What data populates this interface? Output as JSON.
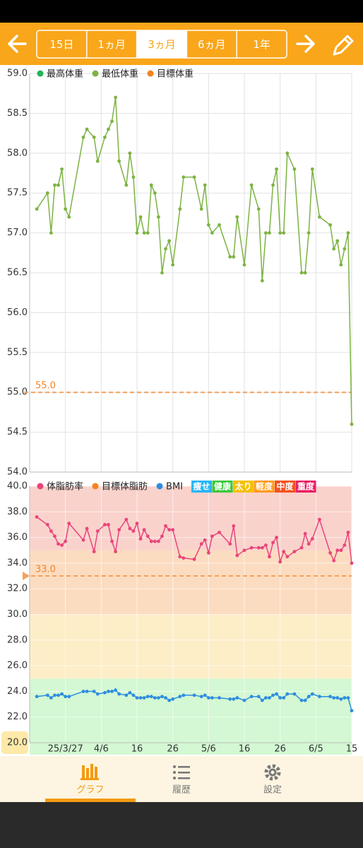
{
  "toolbar": {
    "ranges": [
      "15日",
      "1ヵ月",
      "3ヵ月",
      "6ヵ月",
      "1年"
    ],
    "selected": 2
  },
  "chart_data": [
    {
      "type": "line",
      "legend": [
        {
          "name": "最高体重",
          "color": "#22b455"
        },
        {
          "name": "最低体重",
          "color": "#7cb342"
        },
        {
          "name": "目標体重",
          "color": "#f58220"
        }
      ],
      "xlim": [
        "2025-03-17",
        "2025-06-15"
      ],
      "ylim": [
        54,
        59
      ],
      "yticks": [
        {
          "value": 54,
          "label": "54.0"
        },
        {
          "value": 54.5,
          "label": "54.5"
        },
        {
          "value": 55,
          "label": "55.0"
        },
        {
          "value": 55.5,
          "label": "55.5"
        },
        {
          "value": 56,
          "label": "56.0"
        },
        {
          "value": 56.5,
          "label": "56.5"
        },
        {
          "value": 57,
          "label": "57.0"
        },
        {
          "value": 57.5,
          "label": "57.5"
        },
        {
          "value": 58,
          "label": "58.0"
        },
        {
          "value": 58.5,
          "label": "58.5"
        },
        {
          "value": 59,
          "label": "59.0"
        }
      ],
      "grid": true,
      "target": {
        "value": 55,
        "label": "55.0",
        "color": "#f5a05a"
      },
      "series": [
        {
          "color": "#7cb342",
          "x": [
            "2025-03-19",
            "2025-03-22",
            "2025-03-23",
            "2025-03-24",
            "2025-03-25",
            "2025-03-26",
            "2025-03-27",
            "2025-03-28",
            "2025-04-01",
            "2025-04-02",
            "2025-04-04",
            "2025-04-05",
            "2025-04-07",
            "2025-04-08",
            "2025-04-09",
            "2025-04-10",
            "2025-04-11",
            "2025-04-13",
            "2025-04-14",
            "2025-04-15",
            "2025-04-16",
            "2025-04-17",
            "2025-04-18",
            "2025-04-19",
            "2025-04-20",
            "2025-04-21",
            "2025-04-22",
            "2025-04-23",
            "2025-04-24",
            "2025-04-25",
            "2025-04-26",
            "2025-04-28",
            "2025-04-29",
            "2025-05-02",
            "2025-05-04",
            "2025-05-05",
            "2025-05-06",
            "2025-05-07",
            "2025-05-09",
            "2025-05-12",
            "2025-05-13",
            "2025-05-14",
            "2025-05-16",
            "2025-05-18",
            "2025-05-20",
            "2025-05-21",
            "2025-05-22",
            "2025-05-23",
            "2025-05-24",
            "2025-05-25",
            "2025-05-26",
            "2025-05-27",
            "2025-05-28",
            "2025-05-30",
            "2025-06-01",
            "2025-06-02",
            "2025-06-03",
            "2025-06-04",
            "2025-06-06",
            "2025-06-09",
            "2025-06-10",
            "2025-06-11",
            "2025-06-12",
            "2025-06-13",
            "2025-06-14",
            "2025-06-15"
          ],
          "values": [
            57.3,
            57.5,
            57.0,
            57.6,
            57.6,
            57.8,
            57.3,
            57.2,
            58.2,
            58.3,
            58.2,
            57.9,
            58.2,
            58.3,
            58.4,
            58.7,
            57.9,
            57.6,
            58.0,
            57.7,
            57.0,
            57.2,
            57.0,
            57.0,
            57.6,
            57.5,
            57.2,
            56.5,
            56.8,
            56.9,
            56.6,
            57.3,
            57.7,
            57.7,
            57.3,
            57.6,
            57.1,
            57.0,
            57.1,
            56.7,
            56.7,
            57.2,
            56.6,
            57.6,
            57.3,
            56.4,
            57.0,
            57.0,
            57.6,
            57.8,
            57.0,
            57.0,
            58.0,
            57.8,
            56.5,
            56.5,
            57.0,
            57.8,
            57.2,
            57.1,
            56.8,
            56.9,
            56.6,
            56.8,
            57.0,
            54.6
          ]
        }
      ]
    },
    {
      "type": "line",
      "legend": [
        {
          "name": "体脂肪率",
          "color": "#e8457a"
        },
        {
          "name": "目標体脂肪",
          "color": "#f58220"
        },
        {
          "name": "BMI",
          "color": "#2e8de0"
        }
      ],
      "bands": [
        {
          "label": "痩せ",
          "color": "#29b6f6"
        },
        {
          "label": "健康",
          "color": "#3cc83c",
          "range": [
            20,
            25
          ],
          "fill": "#d3f8d3"
        },
        {
          "label": "太り",
          "color": "#f5c000",
          "range": [
            25,
            30
          ],
          "fill": "#fdeec8"
        },
        {
          "label": "軽度",
          "color": "#ff9a1a",
          "range": [
            30,
            35
          ],
          "fill": "#fcdcc0"
        },
        {
          "label": "中度",
          "color": "#f4511e",
          "range": [
            35,
            40
          ],
          "fill": "#fad2cc"
        },
        {
          "label": "重度",
          "color": "#e91e63"
        }
      ],
      "xlim": [
        "2025-03-17",
        "2025-06-15"
      ],
      "xticks": [
        {
          "value": "2025-03-27",
          "label": "25/3/27"
        },
        {
          "value": "2025-04-06",
          "label": "4/6"
        },
        {
          "value": "2025-04-16",
          "label": "16"
        },
        {
          "value": "2025-04-26",
          "label": "26"
        },
        {
          "value": "2025-05-06",
          "label": "5/6"
        },
        {
          "value": "2025-05-16",
          "label": "16"
        },
        {
          "value": "2025-05-26",
          "label": "26"
        },
        {
          "value": "2025-06-05",
          "label": "6/5"
        },
        {
          "value": "2025-06-15",
          "label": "15"
        }
      ],
      "ylim": [
        20,
        40
      ],
      "yticks": [
        {
          "value": 20,
          "label": "20.0"
        },
        {
          "value": 22,
          "label": "22.0"
        },
        {
          "value": 24,
          "label": "24.0"
        },
        {
          "value": 26,
          "label": "26.0"
        },
        {
          "value": 28,
          "label": "28.0"
        },
        {
          "value": 30,
          "label": "30.0"
        },
        {
          "value": 32,
          "label": "32.0"
        },
        {
          "value": 34,
          "label": "34.0"
        },
        {
          "value": 36,
          "label": "36.0"
        },
        {
          "value": 38,
          "label": "38.0"
        },
        {
          "value": 40,
          "label": "40.0"
        }
      ],
      "grid": true,
      "target": {
        "value": 33,
        "label": "33.0",
        "color": "#f5a05a"
      },
      "series": [
        {
          "color": "#e8457a",
          "x": [
            "2025-03-19",
            "2025-03-22",
            "2025-03-23",
            "2025-03-24",
            "2025-03-25",
            "2025-03-26",
            "2025-03-27",
            "2025-03-28",
            "2025-04-01",
            "2025-04-02",
            "2025-04-04",
            "2025-04-05",
            "2025-04-07",
            "2025-04-08",
            "2025-04-09",
            "2025-04-10",
            "2025-04-11",
            "2025-04-13",
            "2025-04-14",
            "2025-04-15",
            "2025-04-16",
            "2025-04-17",
            "2025-04-18",
            "2025-04-19",
            "2025-04-20",
            "2025-04-21",
            "2025-04-22",
            "2025-04-23",
            "2025-04-24",
            "2025-04-25",
            "2025-04-26",
            "2025-04-28",
            "2025-04-29",
            "2025-05-02",
            "2025-05-04",
            "2025-05-05",
            "2025-05-06",
            "2025-05-07",
            "2025-05-09",
            "2025-05-12",
            "2025-05-13",
            "2025-05-14",
            "2025-05-16",
            "2025-05-18",
            "2025-05-20",
            "2025-05-21",
            "2025-05-22",
            "2025-05-23",
            "2025-05-24",
            "2025-05-25",
            "2025-05-26",
            "2025-05-27",
            "2025-05-28",
            "2025-05-30",
            "2025-06-01",
            "2025-06-02",
            "2025-06-03",
            "2025-06-04",
            "2025-06-06",
            "2025-06-09",
            "2025-06-10",
            "2025-06-11",
            "2025-06-12",
            "2025-06-13",
            "2025-06-14",
            "2025-06-15"
          ],
          "values": [
            37.6,
            37.0,
            36.5,
            36.1,
            35.5,
            35.4,
            35.7,
            37.1,
            35.8,
            36.7,
            34.9,
            36.5,
            37.0,
            37.0,
            35.7,
            34.9,
            36.6,
            37.4,
            36.7,
            36.5,
            37.1,
            35.9,
            36.6,
            36.1,
            35.7,
            35.7,
            35.7,
            36.1,
            36.9,
            36.6,
            36.6,
            34.5,
            34.4,
            34.3,
            35.5,
            35.8,
            34.8,
            36.1,
            36.4,
            35.5,
            36.9,
            34.6,
            35.0,
            35.2,
            35.2,
            35.2,
            35.4,
            34.5,
            35.6,
            36.0,
            34.1,
            34.9,
            34.5,
            34.9,
            35.2,
            36.3,
            35.5,
            35.9,
            37.4,
            34.8,
            34.2,
            35.0,
            35.0,
            35.4,
            36.4,
            34.0
          ]
        },
        {
          "color": "#2e8de0",
          "x": [
            "2025-03-19",
            "2025-03-22",
            "2025-03-23",
            "2025-03-24",
            "2025-03-25",
            "2025-03-26",
            "2025-03-27",
            "2025-03-28",
            "2025-04-01",
            "2025-04-02",
            "2025-04-04",
            "2025-04-05",
            "2025-04-07",
            "2025-04-08",
            "2025-04-09",
            "2025-04-10",
            "2025-04-11",
            "2025-04-13",
            "2025-04-14",
            "2025-04-15",
            "2025-04-16",
            "2025-04-17",
            "2025-04-18",
            "2025-04-19",
            "2025-04-20",
            "2025-04-21",
            "2025-04-22",
            "2025-04-23",
            "2025-04-24",
            "2025-04-25",
            "2025-04-26",
            "2025-04-28",
            "2025-04-29",
            "2025-05-02",
            "2025-05-04",
            "2025-05-05",
            "2025-05-06",
            "2025-05-07",
            "2025-05-09",
            "2025-05-12",
            "2025-05-13",
            "2025-05-14",
            "2025-05-16",
            "2025-05-18",
            "2025-05-20",
            "2025-05-21",
            "2025-05-22",
            "2025-05-23",
            "2025-05-24",
            "2025-05-25",
            "2025-05-26",
            "2025-05-27",
            "2025-05-28",
            "2025-05-30",
            "2025-06-01",
            "2025-06-02",
            "2025-06-03",
            "2025-06-04",
            "2025-06-06",
            "2025-06-09",
            "2025-06-10",
            "2025-06-11",
            "2025-06-12",
            "2025-06-13",
            "2025-06-14",
            "2025-06-15"
          ],
          "values": [
            23.6,
            23.7,
            23.5,
            23.7,
            23.7,
            23.8,
            23.6,
            23.6,
            24.0,
            24.0,
            24.0,
            23.8,
            23.9,
            24.0,
            24.0,
            24.1,
            23.8,
            23.7,
            23.9,
            23.7,
            23.5,
            23.5,
            23.5,
            23.6,
            23.6,
            23.5,
            23.5,
            23.6,
            23.5,
            23.3,
            23.4,
            23.6,
            23.7,
            23.7,
            23.6,
            23.7,
            23.5,
            23.5,
            23.5,
            23.4,
            23.4,
            23.5,
            23.3,
            23.6,
            23.6,
            23.3,
            23.5,
            23.5,
            23.7,
            23.8,
            23.5,
            23.5,
            23.8,
            23.8,
            23.3,
            23.3,
            23.6,
            23.8,
            23.6,
            23.6,
            23.5,
            23.5,
            23.4,
            23.5,
            23.5,
            22.5
          ]
        }
      ]
    }
  ],
  "nav": {
    "items": [
      "グラフ",
      "履歴",
      "設定"
    ],
    "active": 0
  }
}
